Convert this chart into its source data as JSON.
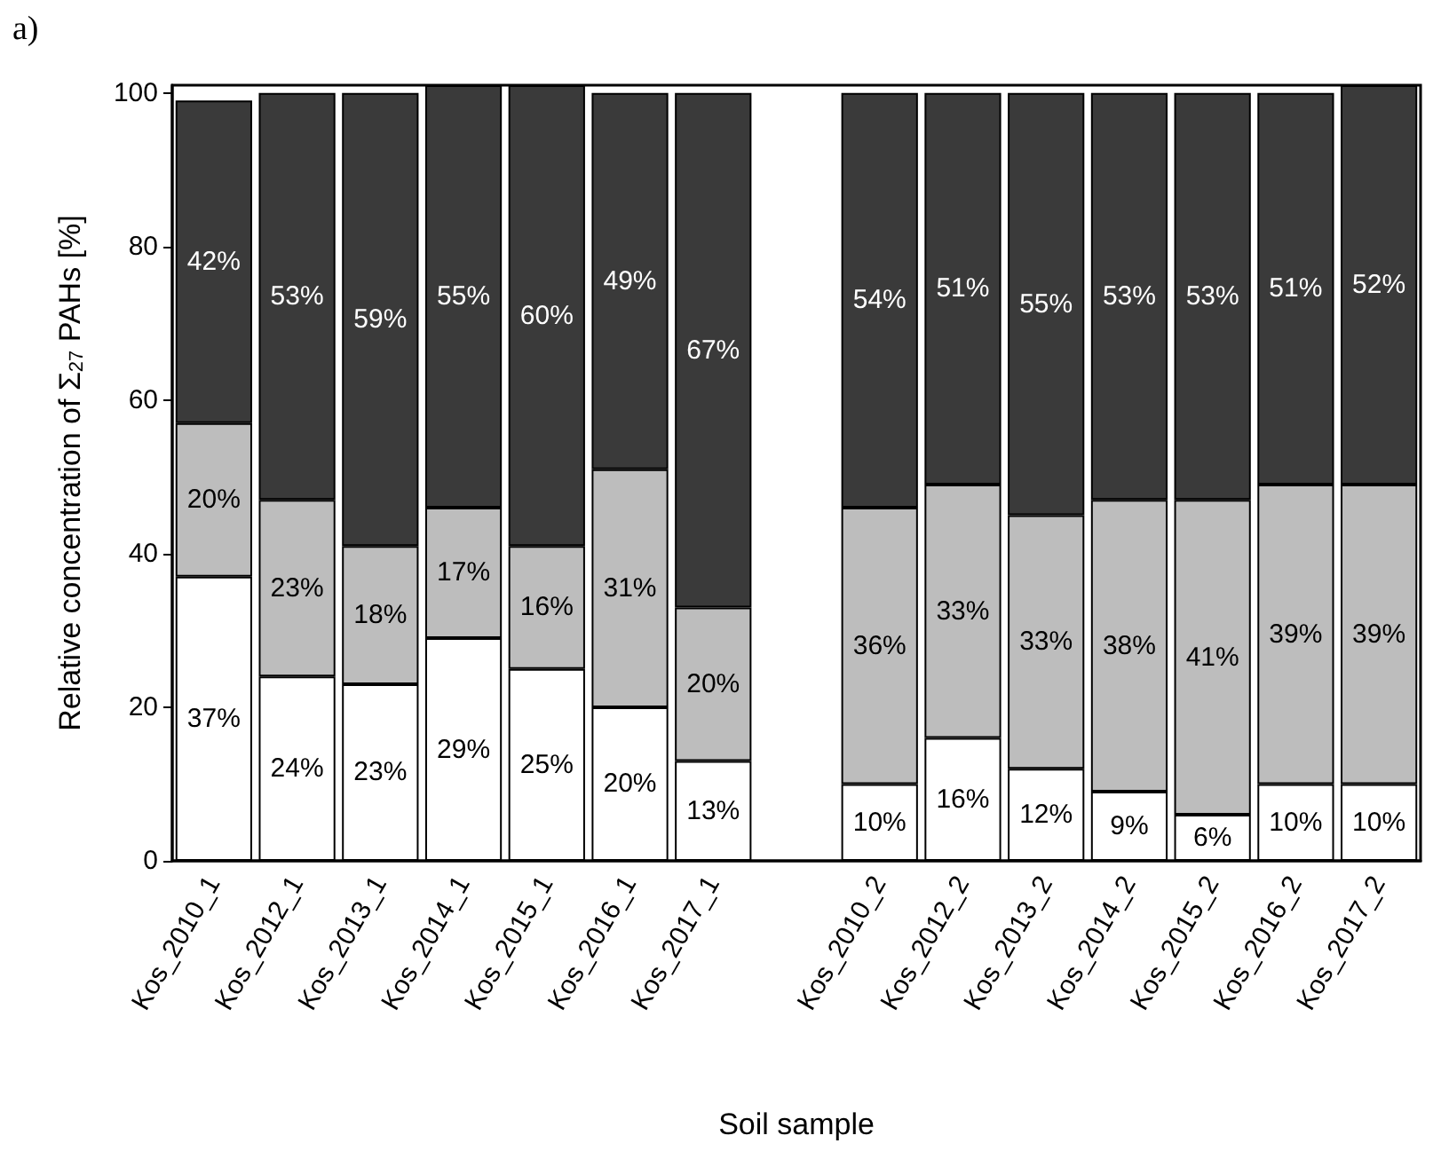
{
  "chart_data": {
    "type": "bar",
    "title": "a)",
    "xlabel": "Soil sample",
    "ylabel": "Relative concentration of Σ$_{27}$ PAHs [%]",
    "categories": [
      "Kos_2010_1",
      "Kos_2012_1",
      "Kos_2013_1",
      "Kos_2014_1",
      "Kos_2015_1",
      "Kos_2016_1",
      "Kos_2017_1",
      null,
      "Kos_2010_2",
      "Kos_2012_2",
      "Kos_2013_2",
      "Kos_2014_2",
      "Kos_2015_2",
      "Kos_2016_2",
      "Kos_2017_2"
    ],
    "stacked": true,
    "ylim": [
      0,
      101
    ],
    "yticks": [
      0,
      20,
      40,
      60,
      80,
      100
    ],
    "grid": false,
    "series": [
      {
        "color": "#ffffff",
        "values": [
          37,
          24,
          23,
          29,
          25,
          20,
          13,
          null,
          10,
          16,
          12,
          9,
          6,
          10,
          10
        ],
        "value_labels": [
          "37%",
          "24%",
          "23%",
          "29%",
          "25%",
          "20%",
          "13%",
          null,
          "10%",
          "16%",
          "12%",
          "9%",
          "6%",
          "10%",
          "10%"
        ]
      },
      {
        "color": "#bdbdbd",
        "values": [
          20,
          23,
          18,
          17,
          16,
          31,
          20,
          null,
          36,
          33,
          33,
          38,
          41,
          39,
          39
        ],
        "value_labels": [
          "20%",
          "23%",
          "18%",
          "17%",
          "16%",
          "31%",
          "20%",
          null,
          "36%",
          "33%",
          "33%",
          "38%",
          "41%",
          "39%",
          "39%"
        ]
      },
      {
        "color": "#3a3a3a",
        "values": [
          42,
          53,
          59,
          55,
          60,
          49,
          67,
          null,
          54,
          51,
          55,
          53,
          53,
          51,
          52
        ],
        "value_labels": [
          "42%",
          "53%",
          "59%",
          "55%",
          "60%",
          "49%",
          "67%",
          null,
          "54%",
          "51%",
          "55%",
          "53%",
          "53%",
          "51%",
          "52%"
        ]
      }
    ]
  }
}
